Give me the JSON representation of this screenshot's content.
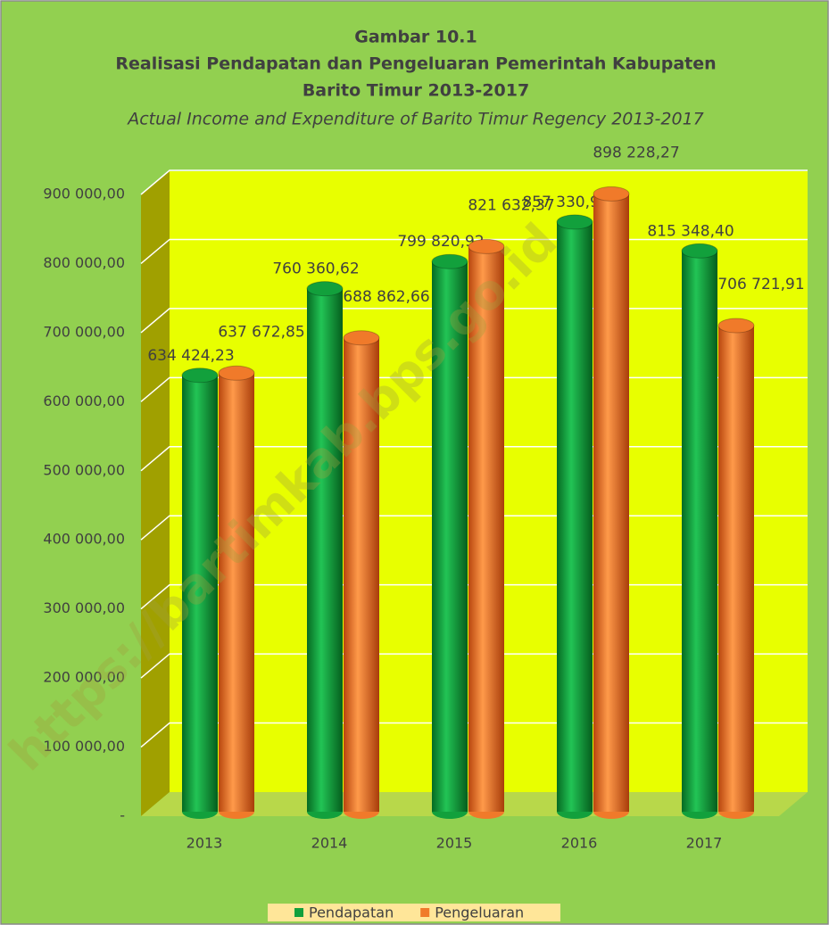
{
  "chart_data": {
    "type": "bar",
    "title": [
      "Gambar 10.1",
      "Realisasi Pendapatan dan Pengeluaran Pemerintah Kabupaten",
      "Barito Timur 2013-2017"
    ],
    "subtitle": "Actual Income and Expenditure of Barito Timur Regency 2013-2017",
    "watermark": "https://bartimkab.bps.go.id",
    "categories": [
      "2013",
      "2014",
      "2015",
      "2016",
      "2017"
    ],
    "series": [
      {
        "name": "Pendapatan",
        "color": "#12a03c",
        "values": [
          634424.23,
          760360.62,
          799820.92,
          857330.97,
          815348.4
        ],
        "value_labels": [
          "634 424,23",
          "760 360,62",
          "799 820,92",
          "857 330,97",
          "815 348,40"
        ]
      },
      {
        "name": "Pengeluaran",
        "color": "#f07a2a",
        "values": [
          637672.85,
          688862.66,
          821632.37,
          898228.27,
          706721.91
        ],
        "value_labels": [
          "637 672,85",
          "688 862,66",
          "821 632,37",
          "898 228,27",
          "706 721,91"
        ]
      }
    ],
    "ylim": [
      0,
      900000
    ],
    "yticks": [
      {
        "value": 0,
        "label": "-"
      },
      {
        "value": 100000,
        "label": "100 000,00"
      },
      {
        "value": 200000,
        "label": "200 000,00"
      },
      {
        "value": 300000,
        "label": "300 000,00"
      },
      {
        "value": 400000,
        "label": "400 000,00"
      },
      {
        "value": 500000,
        "label": "500 000,00"
      },
      {
        "value": 600000,
        "label": "600 000,00"
      },
      {
        "value": 700000,
        "label": "700 000,00"
      },
      {
        "value": 800000,
        "label": "800 000,00"
      },
      {
        "value": 900000,
        "label": "900 000,00"
      }
    ],
    "grid": true,
    "legend": "bottom"
  }
}
